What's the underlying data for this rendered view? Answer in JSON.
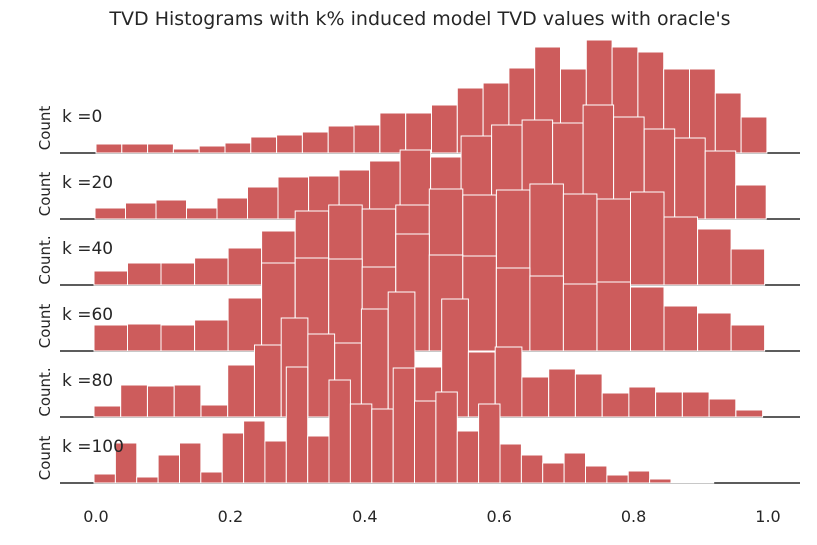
{
  "chart_data": {
    "type": "bar",
    "subtype": "stacked ridgeline histograms",
    "title": "TVD Histograms with k% induced model TVD values with oracle's",
    "xlabel": "",
    "xlim": [
      0.0,
      1.0
    ],
    "xticks": [
      "0.0",
      "0.2",
      "0.4",
      "0.6",
      "0.8",
      "1.0"
    ],
    "grid": false,
    "bar_color": "#cd5c5c",
    "edge_color": "#ffffff",
    "axis_color": "#262626",
    "note_units": "counts are relative (no y ticks shown)",
    "panels": [
      {
        "label": "k =0",
        "ylabel": "Count",
        "bin_start": 0.0,
        "bin_width": 0.0384,
        "counts": [
          9,
          9,
          9,
          4,
          7,
          10,
          16,
          18,
          21,
          27,
          28,
          40,
          40,
          48,
          65,
          70,
          85,
          106,
          84,
          113,
          106,
          101,
          84,
          84,
          60,
          36
        ]
      },
      {
        "label": "k =20",
        "ylabel": "Count",
        "bin_start": -0.0015,
        "bin_width": 0.0454,
        "counts": [
          11,
          16,
          19,
          11,
          21,
          32,
          42,
          43,
          49,
          58,
          69,
          62,
          83,
          94,
          99,
          96,
          114,
          102,
          90,
          81,
          68,
          34
        ]
      },
      {
        "label": "k =40",
        "ylabel": "Count.",
        "bin_start": -0.003,
        "bin_width": 0.0499,
        "counts": [
          14,
          22,
          22,
          27,
          37,
          54,
          74,
          80,
          76,
          80,
          96,
          90,
          95,
          101,
          91,
          86,
          93,
          68,
          56,
          36
        ]
      },
      {
        "label": "k =60",
        "ylabel": "Count",
        "bin_start": -0.003,
        "bin_width": 0.0499,
        "counts": [
          26,
          27,
          26,
          31,
          53,
          88,
          93,
          92,
          84,
          117,
          96,
          95,
          83,
          75,
          67,
          69,
          64,
          45,
          38,
          26
        ]
      },
      {
        "label": "k =80",
        "ylabel": "Count.",
        "bin_start": -0.003,
        "bin_width": 0.0398,
        "counts": [
          11,
          32,
          31,
          32,
          12,
          52,
          72,
          99,
          83,
          74,
          108,
          125,
          50,
          118,
          65,
          70,
          40,
          48,
          43,
          24,
          30,
          25,
          25,
          18,
          7
        ]
      },
      {
        "label": "k =100",
        "ylabel": "Count",
        "bin_start": -0.003,
        "bin_width": 0.0318,
        "counts": [
          9,
          40,
          6,
          28,
          40,
          11,
          50,
          62,
          42,
          116,
          47,
          103,
          79,
          74,
          115,
          82,
          91,
          52,
          79,
          39,
          28,
          20,
          30,
          17,
          8,
          12,
          4,
          1,
          1,
          0,
          0
        ]
      }
    ]
  }
}
